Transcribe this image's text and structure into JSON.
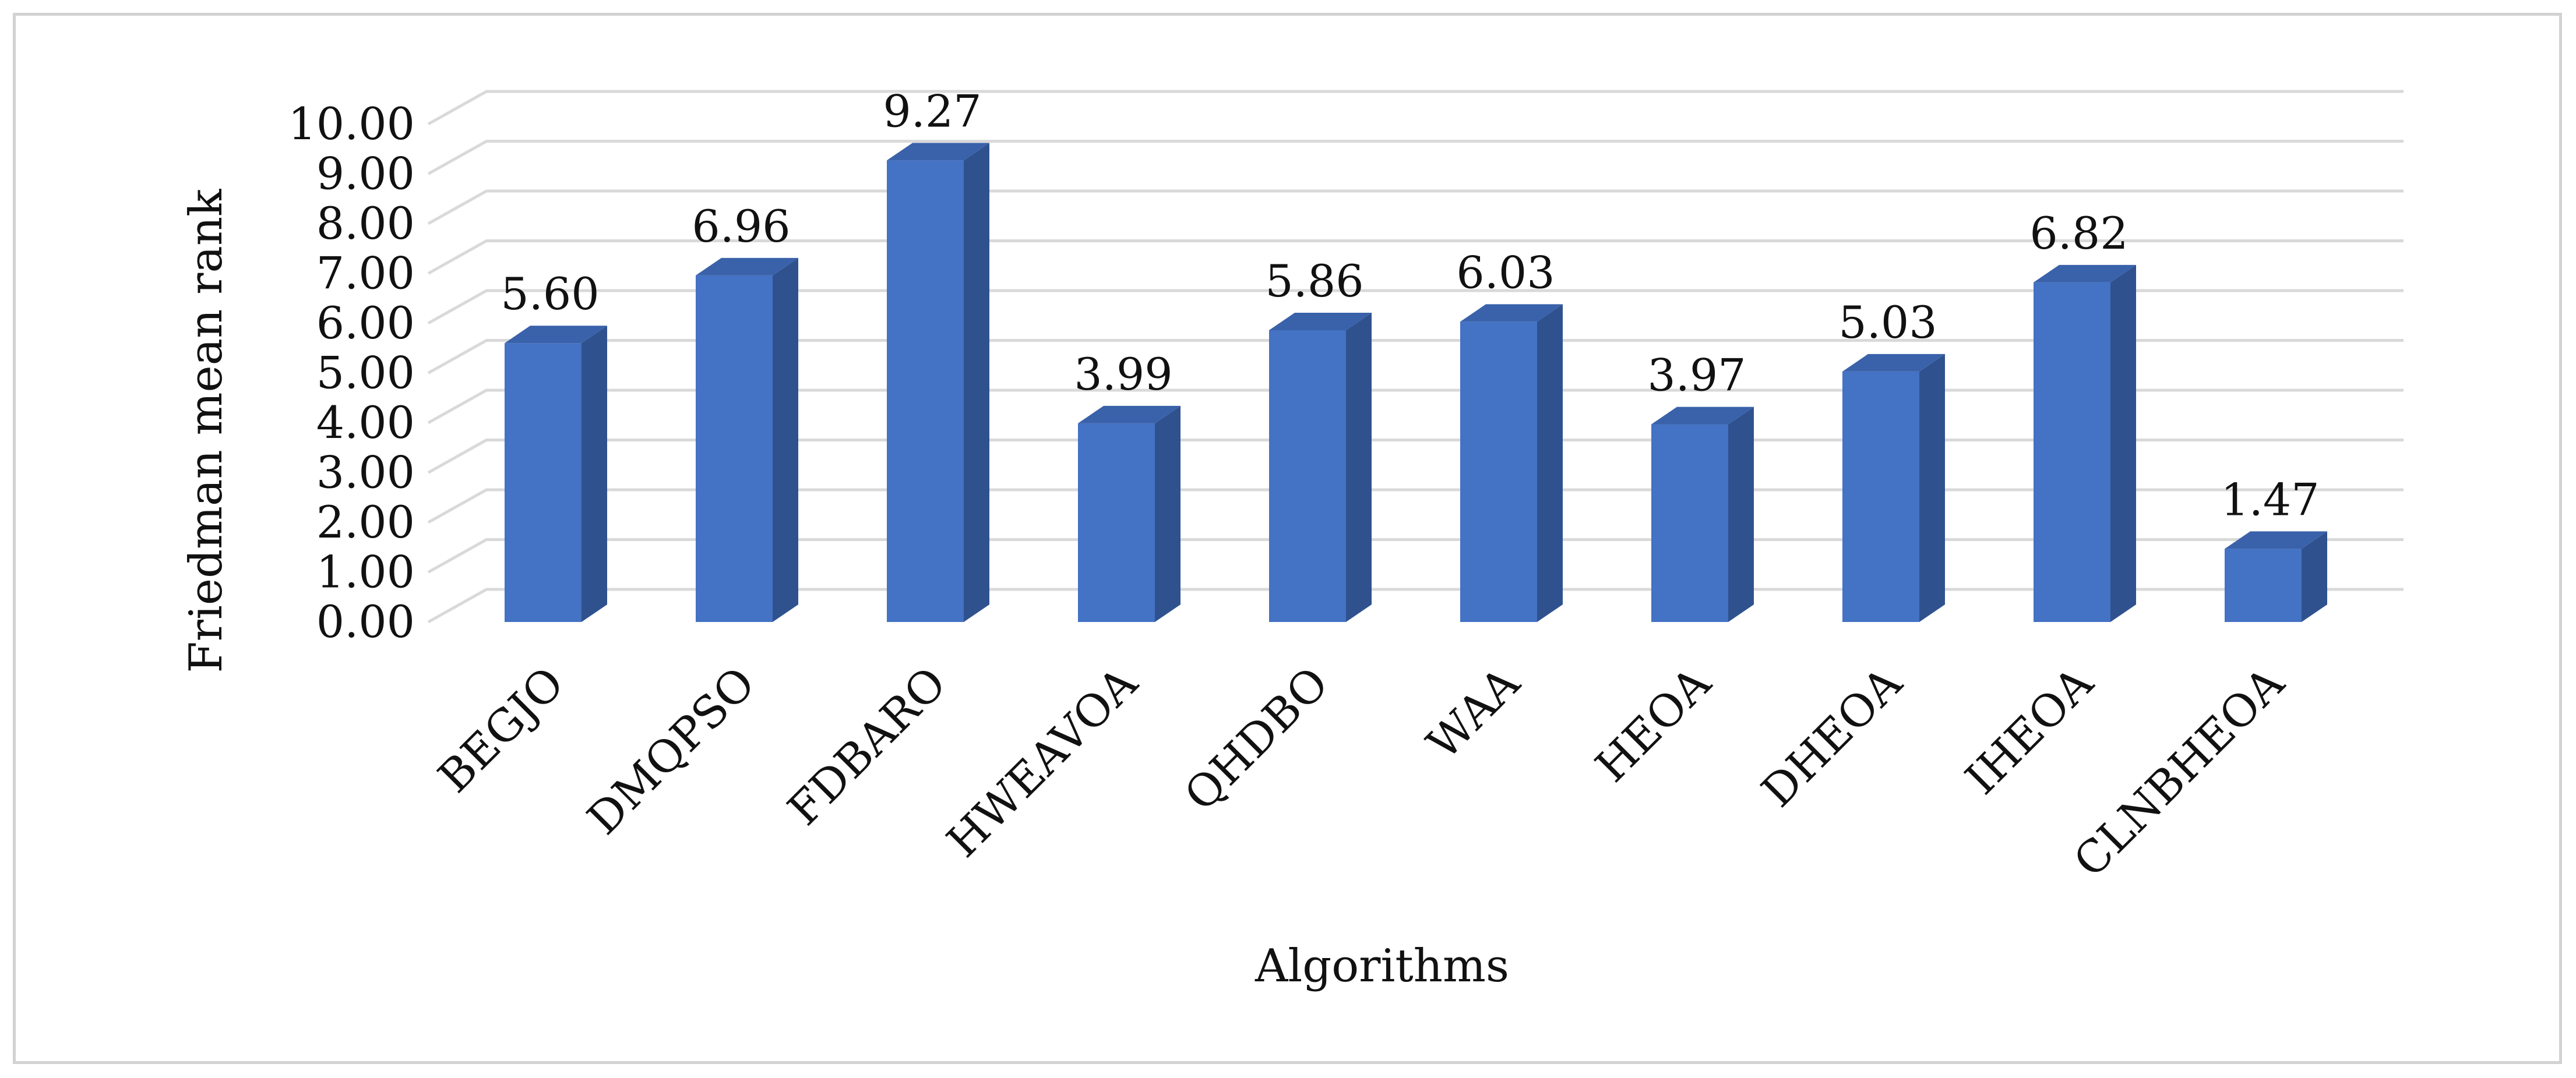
{
  "chart_data": {
    "type": "bar",
    "title": "",
    "xlabel": "Algorithms",
    "ylabel": "Friedman  mean rank",
    "ylim": [
      0,
      10
    ],
    "y_ticks": [
      "0.00",
      "1.00",
      "2.00",
      "3.00",
      "4.00",
      "5.00",
      "6.00",
      "7.00",
      "8.00",
      "9.00",
      "10.00"
    ],
    "grid": true,
    "legend": "none",
    "categories": [
      "BEGJO",
      "DMQPSO",
      "FDBARO",
      "HWEAVOA",
      "QHDBO",
      "WAA",
      "HEOA",
      "DHEOA",
      "IHEOA",
      "CLNBHEOA"
    ],
    "values": [
      5.6,
      6.96,
      9.27,
      3.99,
      5.86,
      6.03,
      3.97,
      5.03,
      6.82,
      1.47
    ],
    "data_labels": [
      "5.60",
      "6.96",
      "9.27",
      "3.99",
      "5.86",
      "6.03",
      "3.97",
      "5.03",
      "6.82",
      "1.47"
    ],
    "colors": {
      "bar_front": "#4472c4",
      "bar_side": "#2f528f",
      "bar_top": "#3a62aa",
      "grid": "#d9d9d9"
    }
  }
}
